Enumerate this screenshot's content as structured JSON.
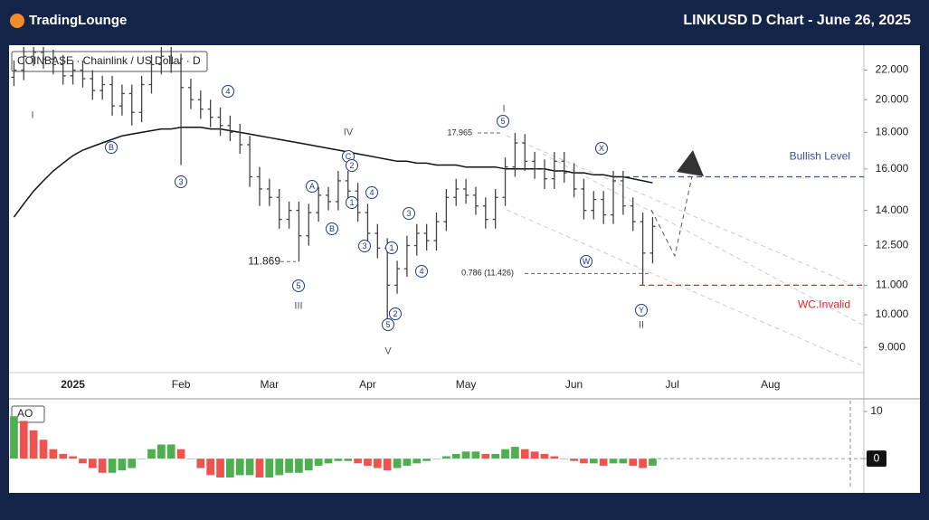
{
  "header": {
    "brand": "TradingLounge",
    "title": "LINKUSD D Chart - June 26, 2025"
  },
  "chart_data": [
    {
      "type": "ohlc",
      "legend": "COINBASE · Chainlink / US Dollar · D",
      "color": "#444444",
      "log_scale": true,
      "ylim": [
        8.3,
        23.7
      ],
      "yticks": [
        {
          "value": 9,
          "label": "9.000"
        },
        {
          "value": 10,
          "label": "10.000"
        },
        {
          "value": 11,
          "label": "11.000"
        },
        {
          "value": 12.5,
          "label": "12.500"
        },
        {
          "value": 14,
          "label": "14.000"
        },
        {
          "value": 16,
          "label": "16.000"
        },
        {
          "value": 18,
          "label": "18.000"
        },
        {
          "value": 20,
          "label": "20.000"
        },
        {
          "value": 22,
          "label": "22.000"
        }
      ],
      "categories": [
        null,
        null,
        null,
        null,
        null,
        null,
        "2025",
        null,
        null,
        null,
        null,
        null,
        null,
        null,
        null,
        null,
        null,
        "Feb",
        null,
        null,
        null,
        null,
        null,
        null,
        null,
        null,
        "Mar",
        null,
        null,
        null,
        null,
        null,
        null,
        null,
        null,
        null,
        "Apr",
        null,
        null,
        null,
        null,
        null,
        null,
        null,
        null,
        null,
        "May",
        null,
        null,
        null,
        null,
        null,
        null,
        null,
        null,
        null,
        null,
        "Jun",
        null,
        null,
        null,
        null,
        null,
        null,
        null,
        null,
        null,
        "Jul",
        null,
        null,
        null,
        null,
        null,
        null,
        null,
        null,
        null,
        "Aug",
        null,
        null,
        null,
        null,
        null,
        null,
        null,
        null,
        null
      ],
      "open": [
        21.5,
        22.0,
        23.0,
        23.3,
        22.8,
        22.4,
        21.6,
        22.0,
        21.4,
        20.6,
        21.0,
        19.6,
        20.4,
        19.2,
        21.0,
        22.4,
        23.0,
        22.5,
        20.8,
        20.0,
        19.4,
        18.9,
        18.4,
        18.0,
        17.3,
        15.6,
        15.0,
        14.6,
        13.6,
        14.0,
        12.9,
        13.9,
        14.7,
        14.4,
        15.4,
        14.9,
        13.9,
        13.0,
        12.4,
        11.0,
        11.6,
        12.5,
        13.0,
        12.7,
        13.5,
        14.6,
        15.0,
        14.7,
        14.2,
        13.6,
        14.6,
        16.1,
        17.4,
        16.4,
        16.0,
        15.5,
        16.4,
        15.8,
        15.0,
        14.0,
        14.5,
        13.8,
        15.4,
        14.2,
        13.5,
        12.2,
        null,
        null,
        null,
        null,
        null,
        null,
        null,
        null,
        null,
        null,
        null,
        null,
        null,
        null,
        null,
        null,
        null,
        null,
        null,
        null,
        null
      ],
      "high": [
        22.7,
        23.7,
        24.0,
        24.0,
        23.5,
        23.1,
        22.7,
        22.7,
        22.0,
        21.6,
        21.6,
        21.0,
        21.0,
        21.6,
        23.1,
        23.7,
        23.7,
        23.2,
        21.4,
        20.6,
        20.0,
        19.5,
        19.0,
        18.5,
        17.8,
        16.1,
        15.5,
        15.0,
        14.4,
        14.4,
        14.3,
        15.1,
        15.1,
        15.9,
        15.9,
        15.3,
        14.3,
        13.4,
        12.8,
        11.9,
        12.9,
        13.4,
        13.4,
        13.9,
        15.0,
        15.5,
        15.5,
        15.1,
        14.6,
        15.0,
        16.6,
        17.965,
        17.9,
        16.9,
        16.5,
        16.9,
        16.9,
        16.3,
        15.5,
        14.9,
        14.9,
        15.9,
        15.9,
        14.6,
        13.9,
        13.7,
        null,
        null,
        null,
        null,
        null,
        null,
        null,
        null,
        null,
        null,
        null,
        null,
        null,
        null,
        null,
        null,
        null,
        null,
        null,
        null,
        null
      ],
      "low": [
        20.9,
        21.3,
        22.3,
        22.1,
        21.7,
        21.0,
        21.0,
        20.8,
        20.0,
        20.0,
        19.0,
        19.0,
        18.4,
        18.6,
        20.4,
        21.7,
        21.8,
        16.2,
        19.4,
        18.8,
        18.3,
        17.8,
        17.5,
        16.8,
        15.1,
        14.2,
        14.2,
        13.2,
        13.2,
        11.869,
        12.5,
        13.5,
        14.0,
        14.0,
        14.5,
        13.5,
        12.6,
        12.0,
        9.8,
        10.7,
        11.3,
        12.1,
        12.3,
        12.3,
        13.1,
        14.2,
        14.3,
        13.8,
        13.2,
        13.2,
        14.2,
        15.6,
        15.9,
        15.5,
        15.0,
        15.0,
        15.3,
        14.6,
        13.6,
        13.6,
        13.4,
        13.4,
        13.8,
        13.1,
        11.0,
        11.8,
        null,
        null,
        null,
        null,
        null,
        null,
        null,
        null,
        null,
        null,
        null,
        null,
        null,
        null,
        null,
        null,
        null,
        null,
        null,
        null,
        null
      ],
      "close": [
        22.0,
        23.0,
        23.3,
        22.8,
        22.4,
        21.6,
        22.0,
        21.4,
        20.6,
        21.0,
        19.6,
        20.4,
        19.2,
        21.0,
        22.4,
        23.0,
        22.5,
        20.8,
        20.0,
        19.4,
        18.9,
        18.4,
        18.0,
        17.3,
        15.6,
        15.0,
        14.6,
        13.6,
        14.0,
        12.9,
        13.9,
        14.7,
        14.4,
        15.4,
        14.9,
        13.9,
        13.0,
        12.4,
        11.0,
        11.6,
        12.5,
        13.0,
        12.7,
        13.5,
        14.6,
        15.0,
        14.7,
        14.2,
        13.6,
        14.6,
        16.1,
        17.4,
        16.4,
        16.0,
        15.5,
        16.4,
        15.8,
        15.0,
        14.0,
        14.5,
        13.8,
        15.4,
        14.2,
        13.5,
        12.2,
        13.3,
        null,
        null,
        null,
        null,
        null,
        null,
        null,
        null,
        null,
        null,
        null,
        null,
        null,
        null,
        null,
        null,
        null,
        null,
        null,
        null,
        null
      ],
      "lines": [
        {
          "color": "#111111",
          "values": [
            13.7,
            14.3,
            14.9,
            15.4,
            15.9,
            16.3,
            16.7,
            17.0,
            17.2,
            17.4,
            17.6,
            17.8,
            17.9,
            18.0,
            18.1,
            18.2,
            18.2,
            18.3,
            18.3,
            18.3,
            18.2,
            18.2,
            18.1,
            18.0,
            17.9,
            17.8,
            17.7,
            17.6,
            17.5,
            17.4,
            17.3,
            17.2,
            17.1,
            17.0,
            16.9,
            16.8,
            16.7,
            16.6,
            16.5,
            16.4,
            16.4,
            16.3,
            16.3,
            16.2,
            16.2,
            16.2,
            16.1,
            16.1,
            16.1,
            16.1,
            16.0,
            16.0,
            16.0,
            16.0,
            16.0,
            15.9,
            15.9,
            15.8,
            15.8,
            15.7,
            15.7,
            15.6,
            15.6,
            15.5,
            15.4,
            15.3,
            null,
            null,
            null,
            null,
            null,
            null,
            null,
            null,
            null,
            null,
            null,
            null,
            null,
            null,
            null,
            null,
            null,
            null,
            null,
            null,
            null
          ]
        }
      ],
      "annotations": [
        "I",
        "B",
        "3",
        "4",
        "IV",
        "C",
        "2",
        "A",
        "1",
        "B",
        "4",
        "3",
        "3",
        "1",
        "2",
        "5",
        "4",
        "5",
        "III",
        "V",
        "I",
        "5",
        "X",
        "W",
        "Y",
        "II"
      ],
      "price_labels": [
        {
          "label": "11.869",
          "value": 11.869
        },
        {
          "label": "17.965",
          "value": 17.965
        },
        {
          "label": "0.786 (11.426)",
          "value": 11.426
        }
      ],
      "levels": [
        {
          "label": "Bullish Level",
          "value": 15.6,
          "color": "#3b4f8a"
        },
        {
          "label": "WC.Invalid",
          "value": 11.0,
          "color": "#e0262b"
        }
      ]
    },
    {
      "type": "bar",
      "legend": "AO",
      "up_color": "#4caf50",
      "down_color": "#ef5350",
      "ylim": [
        -6.3,
        12.3
      ],
      "yticks": [
        0,
        10
      ],
      "values": [
        9,
        8,
        6,
        4,
        2,
        1,
        0.5,
        -1,
        -2,
        -3,
        -3,
        -2.5,
        -2,
        0,
        2,
        3,
        3,
        2,
        0,
        -2,
        -3.5,
        -4,
        -4,
        -3.5,
        -3.5,
        -4,
        -4,
        -3.5,
        -3,
        -3,
        -2.5,
        -1.5,
        -1,
        -0.5,
        -0.5,
        -1,
        -1.5,
        -2,
        -2.5,
        -2,
        -1.5,
        -1,
        -0.5,
        0,
        0.5,
        1,
        1.5,
        1.5,
        1,
        1,
        2,
        2.5,
        2,
        1.5,
        1,
        0.5,
        0,
        -0.5,
        -1,
        -1,
        -1.5,
        -1,
        -1,
        -1.5,
        -2,
        -1.5,
        null,
        null,
        null,
        null,
        null,
        null,
        null,
        null,
        null,
        null,
        null,
        null,
        null,
        null,
        null,
        null,
        null,
        null,
        null,
        null,
        null
      ]
    }
  ]
}
